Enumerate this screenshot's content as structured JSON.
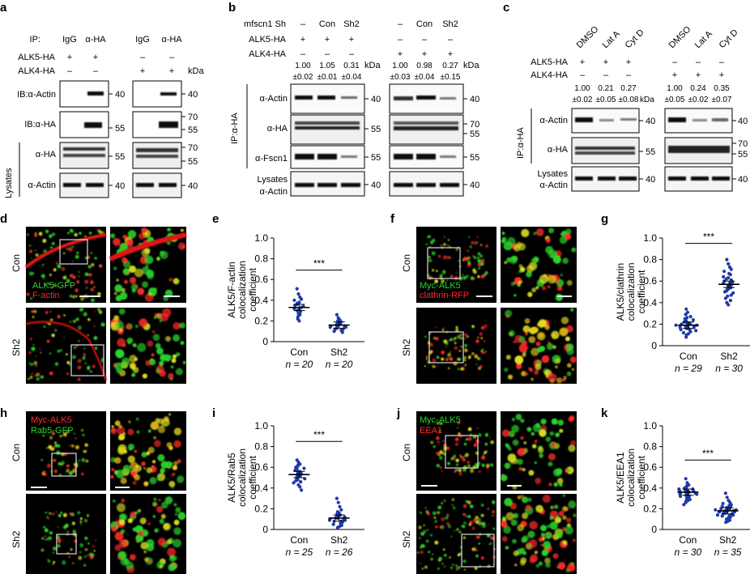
{
  "panel_letters": [
    "a",
    "b",
    "c",
    "d",
    "e",
    "f",
    "g",
    "h",
    "i",
    "j",
    "k"
  ],
  "western": {
    "a": {
      "ip_row": {
        "label": "IP:",
        "lanes": [
          "IgG",
          "α-HA",
          "IgG",
          "α-HA"
        ]
      },
      "rows": [
        {
          "label": "ALK5-HA",
          "signs": [
            "+",
            "+",
            "–",
            "–"
          ]
        },
        {
          "label": "ALK4-HA",
          "signs": [
            "–",
            "–",
            "+",
            "+"
          ]
        }
      ],
      "kda": "kDa",
      "blots": [
        "IB:α-Actin",
        "IB:α-HA",
        "α-HA",
        "α-Actin"
      ],
      "side_label": "Lysates",
      "markers": [
        "40",
        "70",
        "55",
        "55",
        "70",
        "55",
        "40"
      ]
    },
    "b": {
      "rows": [
        {
          "label": "mfscn1 Sh",
          "signs": [
            "–",
            "Con",
            "Sh2",
            "–",
            "Con",
            "Sh2"
          ]
        },
        {
          "label": "ALK5-HA",
          "signs": [
            "+",
            "+",
            "+",
            "–",
            "–",
            "–"
          ]
        },
        {
          "label": "ALK4-HA",
          "signs": [
            "–",
            "–",
            "–",
            "+",
            "+",
            "+"
          ]
        }
      ],
      "quant_top": [
        "1.00",
        "1.05",
        "0.31",
        "1.00",
        "0.98",
        "0.27"
      ],
      "quant_bottom": [
        "±0.02",
        "±0.01",
        "±0.04",
        "±0.03",
        "±0.04",
        "±0.15"
      ],
      "kda": "kDa",
      "side_label": "IP:α-HA",
      "blots": [
        "α-Actin",
        "α-HA",
        "α-Fscn1",
        "Lysates",
        "α-Actin"
      ],
      "markers": [
        "40",
        "70",
        "55",
        "55",
        "40"
      ]
    },
    "c": {
      "treatments": [
        "DMSO",
        "Lat A",
        "Cyt D",
        "DMSO",
        "Lat A",
        "Cyt D"
      ],
      "rows": [
        {
          "label": "ALK5-HA",
          "signs": [
            "+",
            "+",
            "+",
            "–",
            "–",
            "–"
          ]
        },
        {
          "label": "ALK4-HA",
          "signs": [
            "–",
            "–",
            "–",
            "+",
            "+",
            "+"
          ]
        }
      ],
      "quant_top": [
        "1.00",
        "0.21",
        "0.27",
        "1.00",
        "0.24",
        "0.35"
      ],
      "quant_bottom": [
        "±0.02",
        "±0.05",
        "±0.08",
        "±0.05",
        "±0.02",
        "±0.07"
      ],
      "kda": "kDa",
      "side_label": "IP:α-HA",
      "blots": [
        "α-Actin",
        "α-HA",
        "Lysates",
        "α-Actin"
      ],
      "markers": [
        "40",
        "70",
        "55",
        "40"
      ]
    }
  },
  "micrographs": {
    "d": {
      "rows": [
        "Con",
        "Sh2"
      ],
      "labels": [
        {
          "text": "ALK5-GFP",
          "color": "#2bd42b"
        },
        {
          "text": "F-actin",
          "color": "#ff2a2a"
        }
      ]
    },
    "f": {
      "rows": [
        "Con",
        "Sh2"
      ],
      "labels": [
        {
          "text": "Myc-ALK5",
          "color": "#2bd42b"
        },
        {
          "text": "clathrin-RFP",
          "color": "#ff2a2a"
        }
      ]
    },
    "h": {
      "rows": [
        "Con",
        "Sh2"
      ],
      "labels": [
        {
          "text": "Myc-ALK5",
          "color": "#ff2a2a"
        },
        {
          "text": "Rab5-GFP",
          "color": "#2bd42b"
        }
      ]
    },
    "j": {
      "rows": [
        "Con",
        "Sh2"
      ],
      "labels": [
        {
          "text": "Myc-ALK5",
          "color": "#2bd42b"
        },
        {
          "text": "EEA1",
          "color": "#ff2a2a"
        }
      ]
    }
  },
  "colors": {
    "dot": "#1f3aa6",
    "red": "#ff2a2a",
    "green": "#2bd42b"
  },
  "chart_data": [
    {
      "panel": "e",
      "type": "scatter",
      "ylabel": "ALK5/F-actin colocalization coefficient",
      "ylim": [
        0,
        1.0
      ],
      "yticks": [
        "0",
        "0.2",
        "0.4",
        "0.6",
        "0.8",
        "1.0"
      ],
      "categories": [
        "Con",
        "Sh2"
      ],
      "n_labels": [
        "n = 20",
        "n = 20"
      ],
      "means": [
        0.33,
        0.16
      ],
      "sig": "***",
      "points": [
        [
          0.51,
          0.46,
          0.43,
          0.41,
          0.4,
          0.38,
          0.37,
          0.36,
          0.35,
          0.34,
          0.33,
          0.32,
          0.31,
          0.3,
          0.29,
          0.27,
          0.26,
          0.24,
          0.22,
          0.2
        ],
        [
          0.26,
          0.23,
          0.21,
          0.2,
          0.19,
          0.18,
          0.17,
          0.17,
          0.16,
          0.16,
          0.15,
          0.15,
          0.14,
          0.14,
          0.13,
          0.12,
          0.12,
          0.11,
          0.1,
          0.09
        ]
      ]
    },
    {
      "panel": "g",
      "type": "scatter",
      "ylabel": "ALK5/clathrin colocalization coefficient",
      "ylim": [
        0,
        1.0
      ],
      "yticks": [
        "0",
        "0.2",
        "0.4",
        "0.6",
        "0.8",
        "1.0"
      ],
      "categories": [
        "Con",
        "Sh2"
      ],
      "n_labels": [
        "n = 29",
        "n = 30"
      ],
      "means": [
        0.19,
        0.57
      ],
      "sig": "***",
      "points": [
        [
          0.34,
          0.31,
          0.29,
          0.27,
          0.26,
          0.25,
          0.24,
          0.23,
          0.22,
          0.21,
          0.21,
          0.2,
          0.2,
          0.19,
          0.19,
          0.18,
          0.18,
          0.17,
          0.17,
          0.16,
          0.16,
          0.15,
          0.15,
          0.14,
          0.13,
          0.12,
          0.11,
          0.1,
          0.08
        ],
        [
          0.8,
          0.76,
          0.73,
          0.71,
          0.69,
          0.67,
          0.66,
          0.64,
          0.63,
          0.62,
          0.61,
          0.6,
          0.59,
          0.58,
          0.58,
          0.57,
          0.56,
          0.55,
          0.54,
          0.53,
          0.52,
          0.51,
          0.5,
          0.49,
          0.47,
          0.46,
          0.44,
          0.42,
          0.4,
          0.38
        ]
      ]
    },
    {
      "panel": "i",
      "type": "scatter",
      "ylabel": "ALK5/Rab5 colocalization coefficient",
      "ylim": [
        0,
        1.0
      ],
      "yticks": [
        "0",
        "0.2",
        "0.4",
        "0.6",
        "0.8",
        "1.0"
      ],
      "categories": [
        "Con",
        "Sh2"
      ],
      "n_labels": [
        "n = 25",
        "n = 26"
      ],
      "means": [
        0.53,
        0.11
      ],
      "sig": "***",
      "points": [
        [
          0.67,
          0.65,
          0.63,
          0.62,
          0.61,
          0.6,
          0.59,
          0.58,
          0.57,
          0.56,
          0.55,
          0.54,
          0.53,
          0.53,
          0.52,
          0.51,
          0.5,
          0.49,
          0.48,
          0.47,
          0.46,
          0.45,
          0.43,
          0.41,
          0.38
        ],
        [
          0.3,
          0.26,
          0.22,
          0.19,
          0.17,
          0.16,
          0.15,
          0.14,
          0.13,
          0.12,
          0.12,
          0.11,
          0.11,
          0.1,
          0.1,
          0.09,
          0.09,
          0.08,
          0.08,
          0.07,
          0.06,
          0.05,
          0.04,
          0.03,
          0.02,
          0.01
        ]
      ]
    },
    {
      "panel": "k",
      "type": "scatter",
      "ylabel": "ALK5/EEA1 colocalization coefficient",
      "ylim": [
        0,
        1.0
      ],
      "yticks": [
        "0",
        "0.2",
        "0.4",
        "0.6",
        "0.8",
        "1.0"
      ],
      "categories": [
        "Con",
        "Sh2"
      ],
      "n_labels": [
        "n = 30",
        "n = 35"
      ],
      "means": [
        0.36,
        0.18
      ],
      "sig": "***",
      "points": [
        [
          0.49,
          0.45,
          0.43,
          0.42,
          0.41,
          0.4,
          0.39,
          0.39,
          0.38,
          0.38,
          0.37,
          0.37,
          0.36,
          0.36,
          0.36,
          0.35,
          0.35,
          0.34,
          0.34,
          0.33,
          0.33,
          0.32,
          0.32,
          0.31,
          0.3,
          0.29,
          0.28,
          0.27,
          0.26,
          0.24
        ],
        [
          0.35,
          0.31,
          0.28,
          0.26,
          0.25,
          0.24,
          0.23,
          0.22,
          0.22,
          0.21,
          0.21,
          0.2,
          0.2,
          0.19,
          0.19,
          0.18,
          0.18,
          0.18,
          0.17,
          0.17,
          0.17,
          0.16,
          0.16,
          0.15,
          0.15,
          0.14,
          0.14,
          0.13,
          0.13,
          0.12,
          0.11,
          0.1,
          0.09,
          0.08,
          0.07
        ]
      ]
    }
  ]
}
